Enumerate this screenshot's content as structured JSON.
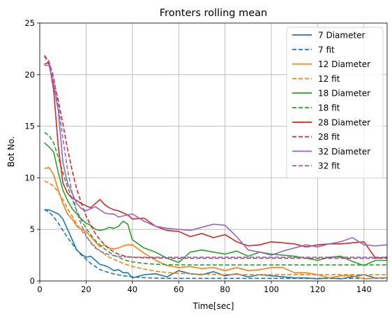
{
  "chart_data": {
    "type": "line",
    "title": "Fronters rolling mean",
    "xlabel": "Time[sec]",
    "ylabel": "Bot No.",
    "xlim": [
      0,
      150
    ],
    "ylim": [
      0,
      25
    ],
    "xticks": [
      0,
      20,
      40,
      60,
      80,
      100,
      120,
      140
    ],
    "yticks": [
      0,
      5,
      10,
      15,
      20,
      25
    ],
    "grid": true,
    "legend_position": "top-right",
    "series": [
      {
        "name": "7 Diameter",
        "style": "solid",
        "color": "#1f77b4",
        "x": [
          2,
          4,
          6,
          8,
          10,
          12,
          14,
          16,
          18,
          20,
          22,
          24,
          26,
          28,
          30,
          32,
          34,
          36,
          38,
          40,
          45,
          50,
          55,
          60,
          65,
          70,
          75,
          80,
          85,
          90,
          95,
          100,
          105,
          110,
          115,
          120,
          125,
          130,
          135,
          140,
          145,
          150
        ],
        "y": [
          6.9,
          6.9,
          6.7,
          6.5,
          6.0,
          5.0,
          4.0,
          3.0,
          2.6,
          2.3,
          2.4,
          2.0,
          1.6,
          1.5,
          1.3,
          1.0,
          1.1,
          0.8,
          0.8,
          0.3,
          0.6,
          0.7,
          0.4,
          1.0,
          0.7,
          0.6,
          0.9,
          0.5,
          0.7,
          0.4,
          0.6,
          0.5,
          0.4,
          0.3,
          0.3,
          0.2,
          0.3,
          0.2,
          0.4,
          0.6,
          0.3,
          0.3
        ]
      },
      {
        "name": "7 fit",
        "style": "dashed",
        "color": "#1f77b4",
        "x": [
          2,
          4,
          6,
          8,
          10,
          12,
          14,
          16,
          18,
          20,
          22,
          24,
          26,
          28,
          30,
          32,
          34,
          36,
          38,
          40,
          45,
          50,
          55,
          60,
          70,
          80,
          90,
          100,
          110,
          120,
          130,
          140,
          150
        ],
        "y": [
          6.9,
          6.7,
          6.2,
          5.6,
          4.9,
          4.2,
          3.6,
          3.0,
          2.5,
          2.1,
          1.7,
          1.4,
          1.1,
          0.95,
          0.8,
          0.68,
          0.58,
          0.5,
          0.45,
          0.4,
          0.32,
          0.28,
          0.26,
          0.25,
          0.25,
          0.25,
          0.25,
          0.25,
          0.25,
          0.25,
          0.25,
          0.25,
          0.25
        ]
      },
      {
        "name": "12 Diameter",
        "style": "solid",
        "color": "#ff7f0e",
        "x": [
          2,
          4,
          6,
          8,
          10,
          12,
          14,
          16,
          18,
          20,
          22,
          24,
          26,
          28,
          30,
          32,
          34,
          36,
          38,
          40,
          45,
          50,
          55,
          60,
          65,
          70,
          75,
          80,
          85,
          90,
          95,
          100,
          105,
          110,
          115,
          120,
          125,
          130,
          135,
          140,
          145,
          150
        ],
        "y": [
          10.9,
          11.0,
          10.3,
          8.8,
          7.5,
          6.5,
          6.0,
          5.3,
          5.0,
          4.8,
          4.3,
          3.8,
          3.3,
          3.5,
          3.2,
          3.1,
          3.2,
          3.4,
          3.5,
          3.5,
          2.7,
          2.0,
          1.5,
          1.3,
          1.4,
          1.2,
          1.3,
          1.0,
          1.3,
          1.0,
          1.1,
          1.3,
          1.3,
          0.8,
          0.8,
          0.6,
          0.3,
          0.5,
          0.5,
          0.2,
          0.3,
          0.3
        ]
      },
      {
        "name": "12 fit",
        "style": "dashed",
        "color": "#ff7f0e",
        "x": [
          2,
          4,
          6,
          8,
          10,
          12,
          14,
          16,
          18,
          20,
          22,
          24,
          26,
          28,
          30,
          32,
          34,
          36,
          38,
          40,
          45,
          50,
          55,
          60,
          70,
          80,
          90,
          100,
          110,
          120,
          130,
          140,
          150
        ],
        "y": [
          9.7,
          9.5,
          9.2,
          8.6,
          7.9,
          7.0,
          6.3,
          5.5,
          4.9,
          4.3,
          3.8,
          3.3,
          2.9,
          2.6,
          2.3,
          2.1,
          1.9,
          1.7,
          1.55,
          1.4,
          1.15,
          0.95,
          0.82,
          0.74,
          0.66,
          0.62,
          0.61,
          0.6,
          0.6,
          0.6,
          0.6,
          0.6,
          0.6
        ]
      },
      {
        "name": "18 Diameter",
        "style": "solid",
        "color": "#2ca02c",
        "x": [
          2,
          4,
          6,
          8,
          10,
          12,
          14,
          16,
          18,
          20,
          22,
          24,
          26,
          28,
          30,
          32,
          34,
          36,
          38,
          40,
          45,
          50,
          55,
          60,
          65,
          70,
          75,
          80,
          85,
          90,
          95,
          100,
          105,
          110,
          115,
          120,
          125,
          130,
          135,
          140,
          145,
          150
        ],
        "y": [
          13.4,
          13.0,
          12.5,
          10.5,
          8.8,
          7.8,
          7.0,
          6.5,
          6.0,
          5.6,
          5.4,
          5.0,
          4.9,
          5.0,
          5.2,
          5.1,
          5.3,
          5.8,
          5.5,
          4.0,
          3.2,
          2.8,
          2.2,
          1.8,
          2.8,
          3.0,
          2.8,
          2.6,
          2.9,
          2.4,
          2.8,
          2.6,
          2.5,
          2.4,
          2.2,
          2.0,
          2.3,
          2.4,
          1.9,
          1.5,
          2.0,
          2.0
        ]
      },
      {
        "name": "18 fit",
        "style": "dashed",
        "color": "#2ca02c",
        "x": [
          2,
          4,
          6,
          8,
          10,
          12,
          14,
          16,
          18,
          20,
          22,
          24,
          26,
          28,
          30,
          32,
          34,
          36,
          38,
          40,
          45,
          50,
          55,
          60,
          70,
          80,
          90,
          100,
          110,
          120,
          130,
          140,
          150
        ],
        "y": [
          14.4,
          14.1,
          13.4,
          12.0,
          10.5,
          9.1,
          7.9,
          6.8,
          5.9,
          5.1,
          4.5,
          3.9,
          3.5,
          3.1,
          2.8,
          2.5,
          2.3,
          2.1,
          1.95,
          1.85,
          1.7,
          1.62,
          1.58,
          1.56,
          1.55,
          1.55,
          1.55,
          1.55,
          1.55,
          1.55,
          1.55,
          1.55,
          1.55
        ]
      },
      {
        "name": "28 Diameter",
        "style": "solid",
        "color": "#d62728",
        "x": [
          2,
          4,
          6,
          8,
          10,
          12,
          14,
          16,
          18,
          20,
          22,
          24,
          26,
          28,
          30,
          32,
          34,
          36,
          38,
          40,
          45,
          50,
          55,
          60,
          65,
          70,
          75,
          80,
          85,
          90,
          95,
          100,
          105,
          110,
          115,
          120,
          125,
          130,
          135,
          140,
          145,
          150
        ],
        "y": [
          21.0,
          21.2,
          18.5,
          13.0,
          9.5,
          8.5,
          8.0,
          7.8,
          7.5,
          7.3,
          7.1,
          7.5,
          7.9,
          7.4,
          7.1,
          6.9,
          6.8,
          6.6,
          6.4,
          6.0,
          6.1,
          5.3,
          4.9,
          4.8,
          4.3,
          4.6,
          4.2,
          4.5,
          3.8,
          3.4,
          3.5,
          3.8,
          3.7,
          3.6,
          3.3,
          3.5,
          3.6,
          3.6,
          3.7,
          3.8,
          2.2,
          2.3
        ]
      },
      {
        "name": "28 fit",
        "style": "dashed",
        "color": "#d62728",
        "x": [
          2,
          4,
          6,
          8,
          10,
          12,
          14,
          16,
          18,
          20,
          22,
          24,
          26,
          28,
          30,
          32,
          34,
          36,
          38,
          40,
          45,
          50,
          55,
          60,
          70,
          80,
          90,
          100,
          110,
          120,
          130,
          140,
          150
        ],
        "y": [
          21.8,
          21.0,
          19.5,
          17.5,
          15.2,
          12.8,
          10.7,
          8.9,
          7.5,
          6.3,
          5.4,
          4.6,
          4.0,
          3.5,
          3.1,
          2.8,
          2.6,
          2.45,
          2.35,
          2.3,
          2.25,
          2.22,
          2.21,
          2.2,
          2.2,
          2.2,
          2.2,
          2.2,
          2.2,
          2.2,
          2.2,
          2.2,
          2.2
        ]
      },
      {
        "name": "32 Diameter",
        "style": "solid",
        "color": "#9467bd",
        "x": [
          2,
          4,
          6,
          8,
          10,
          12,
          14,
          16,
          18,
          20,
          22,
          24,
          26,
          28,
          30,
          32,
          34,
          36,
          38,
          40,
          45,
          50,
          55,
          60,
          65,
          70,
          75,
          80,
          85,
          90,
          95,
          100,
          105,
          110,
          115,
          120,
          125,
          130,
          135,
          140,
          145,
          150
        ],
        "y": [
          20.9,
          20.9,
          19.0,
          16.5,
          11.5,
          9.5,
          8.5,
          7.5,
          7.0,
          6.8,
          7.0,
          7.2,
          6.9,
          6.6,
          6.5,
          6.5,
          6.2,
          6.3,
          6.4,
          6.5,
          5.8,
          5.3,
          5.1,
          5.0,
          4.9,
          5.2,
          5.5,
          5.4,
          4.3,
          3.0,
          2.8,
          2.5,
          2.9,
          3.2,
          3.5,
          3.3,
          3.6,
          3.8,
          4.2,
          3.5,
          3.4,
          3.5
        ]
      },
      {
        "name": "32 fit",
        "style": "dashed",
        "color": "#9467bd",
        "x": [
          2,
          4,
          6,
          8,
          10,
          12,
          14,
          16,
          18,
          20,
          22,
          24,
          26,
          28,
          30,
          32,
          34,
          36,
          38,
          40,
          45,
          50,
          55,
          60,
          70,
          80,
          90,
          100,
          110,
          120,
          130,
          140,
          150
        ],
        "y": [
          21.9,
          21.3,
          19.8,
          17.0,
          13.8,
          10.8,
          8.5,
          6.7,
          5.4,
          4.4,
          3.7,
          3.2,
          2.9,
          2.7,
          2.55,
          2.45,
          2.4,
          2.35,
          2.32,
          2.3,
          2.3,
          2.3,
          2.3,
          2.3,
          2.3,
          2.3,
          2.3,
          2.3,
          2.3,
          2.3,
          2.3,
          2.3,
          2.3
        ]
      }
    ]
  }
}
